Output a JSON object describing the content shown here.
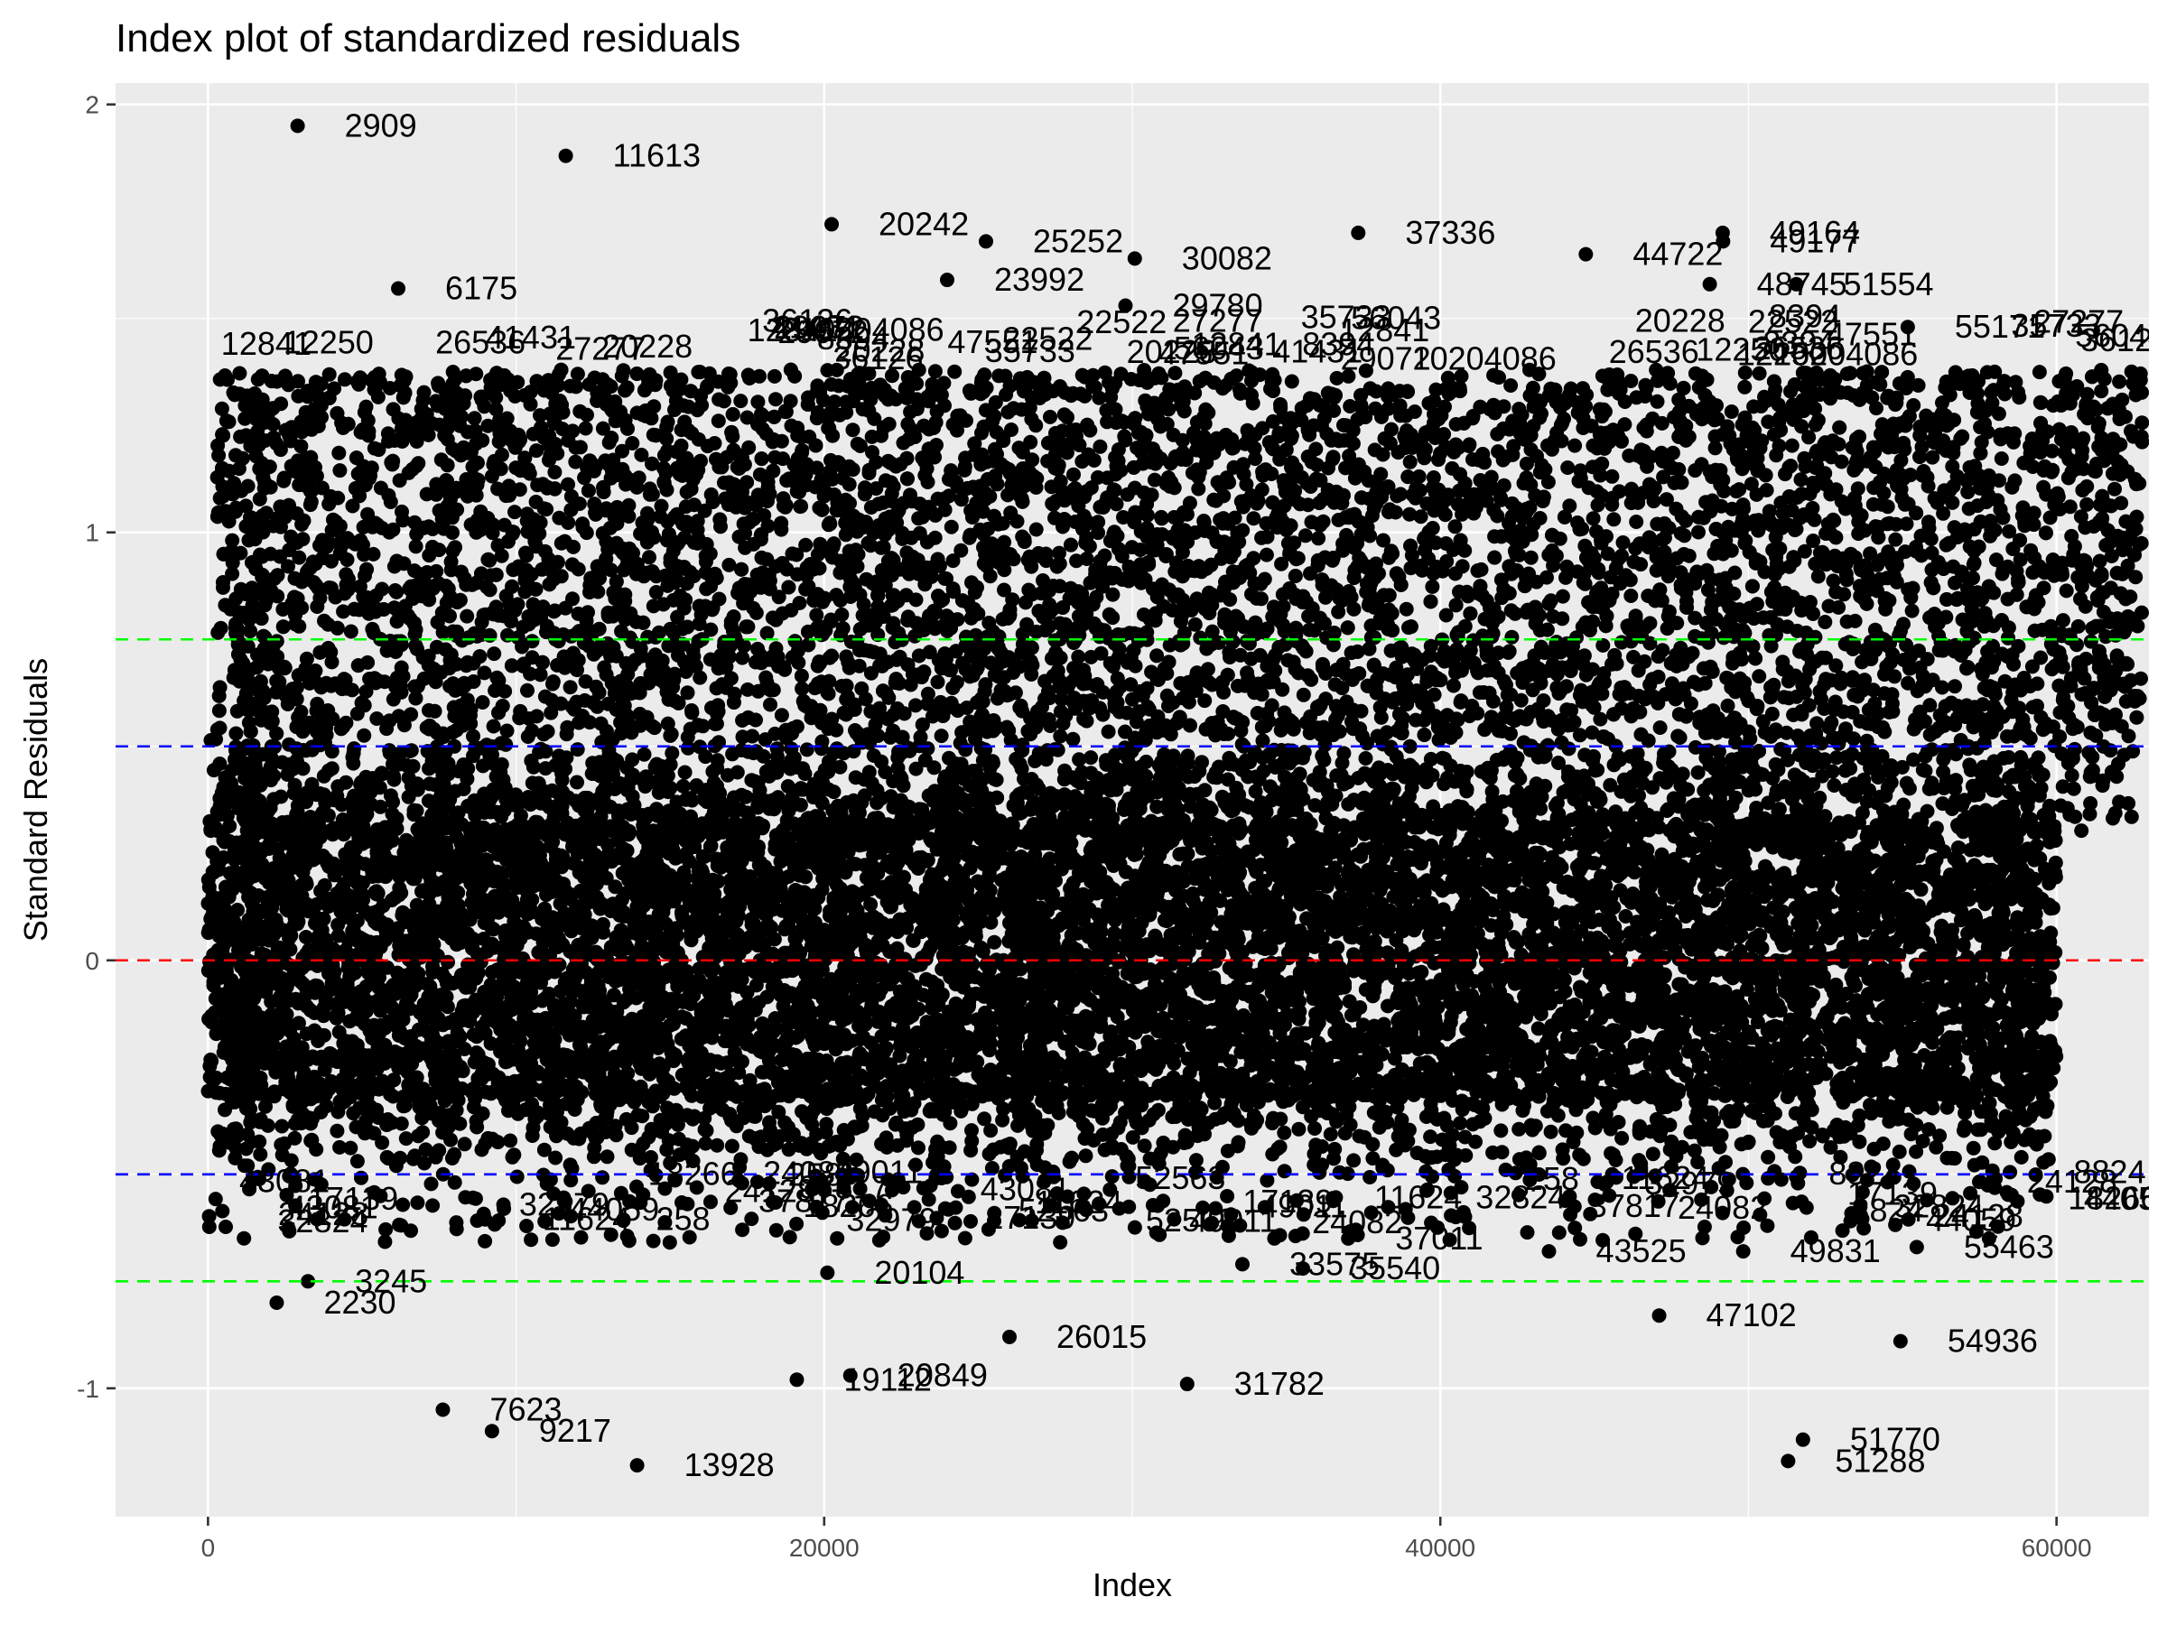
{
  "chart_data": {
    "type": "scatter",
    "title": "Index plot of standardized residuals",
    "xlabel": "Index",
    "ylabel": "Standard Residuals",
    "xlim": [
      -3000,
      63000
    ],
    "ylim": [
      -1.3,
      2.05
    ],
    "x_ticks": [
      0,
      20000,
      40000,
      60000
    ],
    "y_ticks": [
      -1,
      0,
      1,
      2
    ],
    "grid": true,
    "n_points": 60000,
    "reference_lines": [
      {
        "y": 0,
        "color": "#ff0000",
        "style": "dashed"
      },
      {
        "y": 0.5,
        "color": "#0000ff",
        "style": "dashed"
      },
      {
        "y": -0.5,
        "color": "#0000ff",
        "style": "dashed"
      },
      {
        "y": 0.75,
        "color": "#00ff00",
        "style": "dashed"
      },
      {
        "y": -0.75,
        "color": "#00ff00",
        "style": "dashed"
      }
    ],
    "bands": [
      {
        "y_min": -0.32,
        "y_max": 0.32,
        "note": "dense core"
      },
      {
        "y_min": 0.5,
        "y_max": 1.38,
        "note": "upper dense cloud"
      }
    ],
    "labeled_points": [
      {
        "label": "2909",
        "x": 2909,
        "y": 1.95
      },
      {
        "label": "11613",
        "x": 11613,
        "y": 1.88
      },
      {
        "label": "20242",
        "x": 20242,
        "y": 1.72
      },
      {
        "label": "25252",
        "x": 25252,
        "y": 1.68
      },
      {
        "label": "30082",
        "x": 30082,
        "y": 1.64
      },
      {
        "label": "37336",
        "x": 37336,
        "y": 1.7
      },
      {
        "label": "44722",
        "x": 44722,
        "y": 1.65
      },
      {
        "label": "49164",
        "x": 49164,
        "y": 1.7
      },
      {
        "label": "49177",
        "x": 49177,
        "y": 1.68
      },
      {
        "label": "48745",
        "x": 48745,
        "y": 1.58
      },
      {
        "label": "51554",
        "x": 51554,
        "y": 1.58
      },
      {
        "label": "6175",
        "x": 6175,
        "y": 1.57
      },
      {
        "label": "23992",
        "x": 23992,
        "y": 1.59
      },
      {
        "label": "29780",
        "x": 29780,
        "y": 1.53
      },
      {
        "label": "55171",
        "x": 55171,
        "y": 1.48
      },
      {
        "label": "2230",
        "x": 2230,
        "y": -0.8
      },
      {
        "label": "3245",
        "x": 3245,
        "y": -0.75
      },
      {
        "label": "20104",
        "x": 20104,
        "y": -0.73
      },
      {
        "label": "7623",
        "x": 7623,
        "y": -1.05
      },
      {
        "label": "9217",
        "x": 9217,
        "y": -1.1
      },
      {
        "label": "13928",
        "x": 13928,
        "y": -1.18
      },
      {
        "label": "19112",
        "x": 19112,
        "y": -0.98
      },
      {
        "label": "20849",
        "x": 20849,
        "y": -0.97
      },
      {
        "label": "26015",
        "x": 26015,
        "y": -0.88
      },
      {
        "label": "31782",
        "x": 31782,
        "y": -0.99
      },
      {
        "label": "35540",
        "x": 35540,
        "y": -0.72
      },
      {
        "label": "33575",
        "x": 33575,
        "y": -0.71
      },
      {
        "label": "37011",
        "x": 37011,
        "y": -0.65
      },
      {
        "label": "47102",
        "x": 47102,
        "y": -0.83
      },
      {
        "label": "54936",
        "x": 54936,
        "y": -0.89
      },
      {
        "label": "51770",
        "x": 51770,
        "y": -1.12
      },
      {
        "label": "51288",
        "x": 51288,
        "y": -1.17
      },
      {
        "label": "55463",
        "x": 55463,
        "y": -0.67
      },
      {
        "label": "49831",
        "x": 49831,
        "y": -0.68
      },
      {
        "label": "43525",
        "x": 43525,
        "y": -0.68
      }
    ],
    "clutter_labels": [
      "8394",
      "11624",
      "12841",
      "17139",
      "20228",
      "24128",
      "27277",
      "32824",
      "41431",
      "43081",
      "56043",
      "258",
      "29072",
      "49011",
      "10204086",
      "8824",
      "12250",
      "18266",
      "22522",
      "24082",
      "26536",
      "32979",
      "35733",
      "44059",
      "36126",
      "37817",
      "47551",
      "52563"
    ],
    "colors": {
      "panel": "#ebebeb",
      "grid": "#ffffff",
      "point": "#000000",
      "ticks": "#4d4d4d"
    }
  }
}
